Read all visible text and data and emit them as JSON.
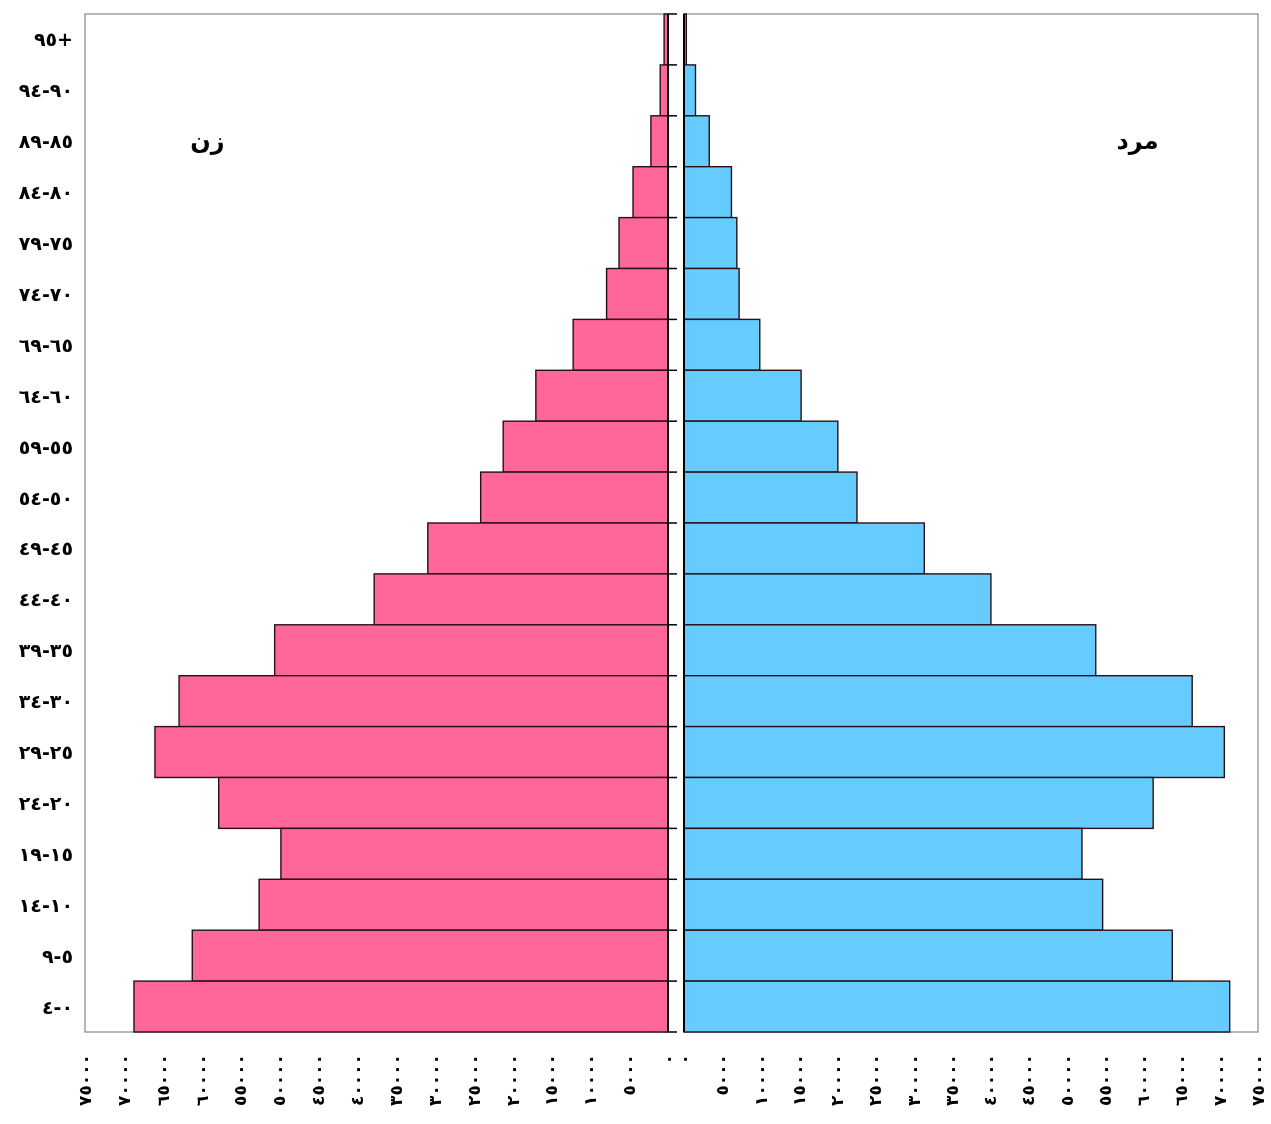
{
  "chart_data": [
    {
      "type": "bar",
      "orientation": "horizontal",
      "categories": [
        "٩٥+",
        "٩٤-٩٠",
        "٨٩-٨٥",
        "٨٤-٨٠",
        "٧٩-٧٥",
        "٧٤-٧٠",
        "٦٩-٦٥",
        "٦٤-٦٠",
        "٥٩-٥٥",
        "٥٤-٥٠",
        "٤٩-٤٥",
        "٤٤-٤٠",
        "٣٩-٣٥",
        "٣٤-٣٠",
        "٢٩-٢٥",
        "٢٤-٢٠",
        "١٩-١٥",
        "١٤-١٠",
        "٩-٥",
        "٤-٠"
      ],
      "series": [
        {
          "name": "زن",
          "color": "#ff6699",
          "values": [
            500,
            1000,
            2200,
            4500,
            6300,
            7900,
            12200,
            17000,
            21200,
            24100,
            30900,
            37800,
            50600,
            62900,
            66000,
            57800,
            49800,
            52600,
            61200,
            68700
          ]
        }
      ],
      "xlim": [
        75000,
        0
      ],
      "xticks": [
        {
          "value": 75000,
          "label": "٧٥٠٠٠"
        },
        {
          "value": 70000,
          "label": "٧٠٠٠٠"
        },
        {
          "value": 65000,
          "label": "٦٥٠٠٠"
        },
        {
          "value": 60000,
          "label": "٦٠٠٠٠"
        },
        {
          "value": 55000,
          "label": "٥٥٠٠٠"
        },
        {
          "value": 50000,
          "label": "٥٠٠٠٠"
        },
        {
          "value": 45000,
          "label": "٤٥٠٠٠"
        },
        {
          "value": 40000,
          "label": "٤٠٠٠٠"
        },
        {
          "value": 35000,
          "label": "٣٥٠٠٠"
        },
        {
          "value": 30000,
          "label": "٣٠٠٠٠"
        },
        {
          "value": 25000,
          "label": "٢٥٠٠٠"
        },
        {
          "value": 20000,
          "label": "٢٠٠٠٠"
        },
        {
          "value": 15000,
          "label": "١٥٠٠٠"
        },
        {
          "value": 10000,
          "label": "١٠٠٠٠"
        },
        {
          "value": 5000,
          "label": "٥٠٠٠"
        },
        {
          "value": 0,
          "label": "٠"
        }
      ]
    },
    {
      "type": "bar",
      "orientation": "horizontal",
      "tick_labels": "x",
      "categories": [
        null,
        null,
        null,
        null,
        null,
        null,
        null,
        null,
        null,
        null,
        null,
        null,
        null,
        null,
        null,
        null,
        null,
        null,
        null,
        null
      ],
      "series": [
        {
          "name": "مرد",
          "color": "#66ccff",
          "values": [
            300,
            1500,
            3300,
            6200,
            6900,
            7200,
            9900,
            15300,
            20100,
            22600,
            31400,
            40100,
            53800,
            66400,
            70600,
            61300,
            52000,
            54700,
            63800,
            71300
          ]
        }
      ],
      "xlim": [
        0,
        75000
      ],
      "xticks": [
        {
          "value": 0,
          "label": "٠"
        },
        {
          "value": 5000,
          "label": "٥٠٠٠"
        },
        {
          "value": 10000,
          "label": "١٠٠٠٠"
        },
        {
          "value": 15000,
          "label": "١٥٠٠٠"
        },
        {
          "value": 20000,
          "label": "٢٠٠٠٠"
        },
        {
          "value": 25000,
          "label": "٢٥٠٠٠"
        },
        {
          "value": 30000,
          "label": "٣٠٠٠٠"
        },
        {
          "value": 35000,
          "label": "٣٥٠٠٠"
        },
        {
          "value": 40000,
          "label": "٤٠٠٠٠"
        },
        {
          "value": 45000,
          "label": "٤٥٠٠٠"
        },
        {
          "value": 50000,
          "label": "٥٠٠٠٠"
        },
        {
          "value": 55000,
          "label": "٥٥٠٠٠"
        },
        {
          "value": 60000,
          "label": "٦٠٠٠٠"
        },
        {
          "value": 65000,
          "label": "٦٥٠٠٠"
        },
        {
          "value": 70000,
          "label": "٧٠٠٠٠"
        },
        {
          "value": 75000,
          "label": "٧٥٠٠٠"
        }
      ]
    }
  ]
}
